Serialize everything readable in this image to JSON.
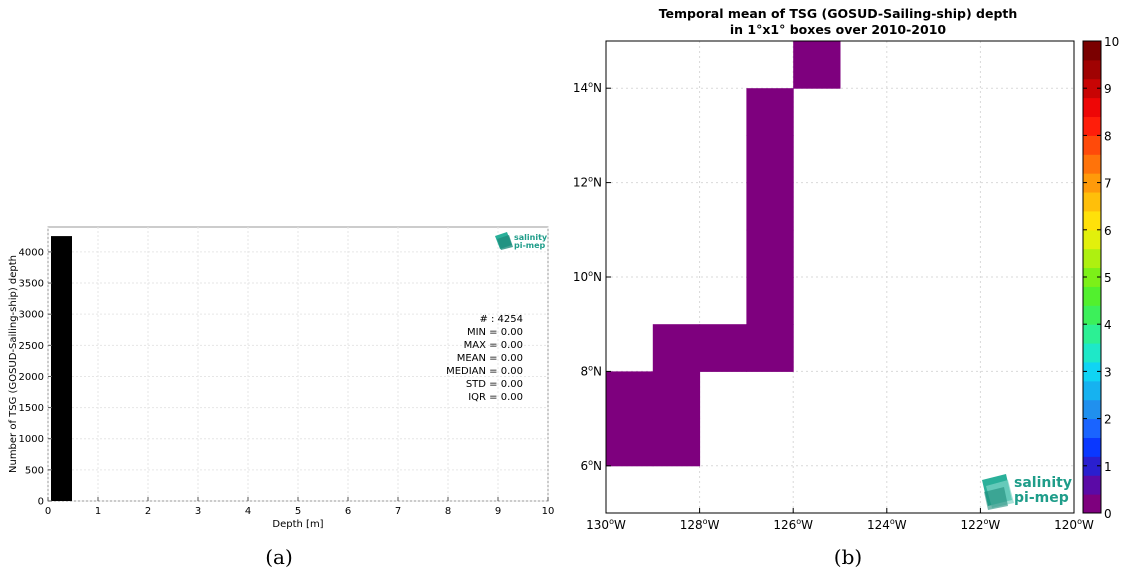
{
  "chart_data": [
    {
      "type": "bar",
      "panel_label": "(a)",
      "xlabel": "Depth [m]",
      "ylabel": "Number of TSG (GOSUD-Sailing-ship) depth",
      "xlim": [
        0,
        10
      ],
      "ylim": [
        0,
        4400
      ],
      "xticks": [
        "0",
        "1",
        "2",
        "3",
        "4",
        "5",
        "6",
        "7",
        "8",
        "9",
        "10"
      ],
      "yticks": [
        "0",
        "500",
        "1000",
        "1500",
        "2000",
        "2500",
        "3000",
        "3500",
        "4000"
      ],
      "bars": [
        {
          "x0": 0,
          "x1": 0.42,
          "value": 4254
        }
      ],
      "grid": true,
      "stats": {
        "count": "# : 4254",
        "min": "MIN = 0.00",
        "max": "MAX =  0.00",
        "mean": "MEAN = 0.00",
        "median": "MEDIAN = 0.00",
        "std": "STD = 0.00",
        "iqr": "IQR = 0.00"
      },
      "logo": {
        "line1": "salinity",
        "line2": "pi-mep"
      },
      "bar_color": "#000000"
    },
    {
      "type": "heatmap",
      "panel_label": "(b)",
      "title_lines": [
        "Temporal mean of TSG (GOSUD-Sailing-ship) depth",
        "in 1°x1° boxes over 2010-2010"
      ],
      "lon_range": [
        -130,
        -120
      ],
      "lat_range": [
        5,
        15
      ],
      "xticks": [
        {
          "v": -130,
          "num": "130",
          "unit": "W"
        },
        {
          "v": -128,
          "num": "128",
          "unit": "W"
        },
        {
          "v": -126,
          "num": "126",
          "unit": "W"
        },
        {
          "v": -124,
          "num": "124",
          "unit": "W"
        },
        {
          "v": -122,
          "num": "122",
          "unit": "W"
        },
        {
          "v": -120,
          "num": "120",
          "unit": "W"
        }
      ],
      "yticks": [
        {
          "v": 6,
          "num": "6",
          "unit": "N"
        },
        {
          "v": 8,
          "num": "8",
          "unit": "N"
        },
        {
          "v": 10,
          "num": "10",
          "unit": "N"
        },
        {
          "v": 12,
          "num": "12",
          "unit": "N"
        },
        {
          "v": 14,
          "num": "14",
          "unit": "N"
        }
      ],
      "cells": [
        {
          "lon0": -130,
          "lat0": 6,
          "value": 0
        },
        {
          "lon0": -130,
          "lat0": 7,
          "value": 0
        },
        {
          "lon0": -129,
          "lat0": 6,
          "value": 0
        },
        {
          "lon0": -129,
          "lat0": 7,
          "value": 0
        },
        {
          "lon0": -129,
          "lat0": 8,
          "value": 0
        },
        {
          "lon0": -128,
          "lat0": 8,
          "value": 0
        },
        {
          "lon0": -127,
          "lat0": 8,
          "value": 0
        },
        {
          "lon0": -127,
          "lat0": 9,
          "value": 0
        },
        {
          "lon0": -127,
          "lat0": 10,
          "value": 0
        },
        {
          "lon0": -127,
          "lat0": 11,
          "value": 0
        },
        {
          "lon0": -127,
          "lat0": 12,
          "value": 0
        },
        {
          "lon0": -127,
          "lat0": 13,
          "value": 0
        },
        {
          "lon0": -126,
          "lat0": 14,
          "value": 0
        }
      ],
      "colorbar": {
        "range": [
          0,
          10
        ],
        "ticks": [
          "0",
          "1",
          "2",
          "3",
          "4",
          "5",
          "6",
          "7",
          "8",
          "9",
          "10"
        ],
        "colors": [
          "#7e007e",
          "#5b0aa6",
          "#2a1fcf",
          "#0a38ff",
          "#1a64ff",
          "#2090ee",
          "#16b2f0",
          "#10d4f4",
          "#1ee8c8",
          "#2cf094",
          "#3cf05a",
          "#52f02e",
          "#7cf018",
          "#aef010",
          "#e2f00c",
          "#ffe10a",
          "#ffbf0a",
          "#ff9a0a",
          "#ff730a",
          "#ff4a0a",
          "#ff1e0a",
          "#ee0606",
          "#c80404",
          "#a00202",
          "#7a0000"
        ]
      },
      "grid": true,
      "logo": {
        "line1": "salinity",
        "line2": "pi-mep"
      }
    }
  ]
}
